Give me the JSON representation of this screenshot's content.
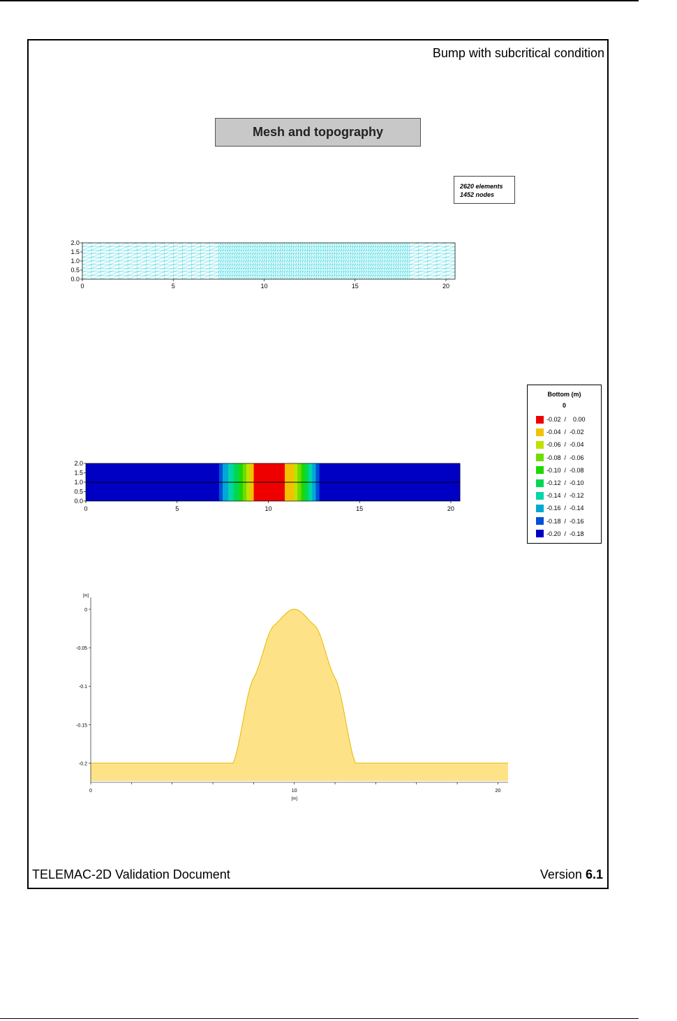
{
  "page": {
    "title": "Bump with subcritical condition",
    "section": "Mesh and topography",
    "mesh_info": [
      "2620 elements",
      "1452 nodes"
    ],
    "footer_left": "TELEMAC-2D Validation Document",
    "footer_version_label": "Version",
    "footer_version_num": "6.1"
  },
  "legend": {
    "title": "Bottom (m)",
    "subtitle": "0",
    "items": [
      {
        "label": "-0.02  /    0.00",
        "color": "#ee0000"
      },
      {
        "label": "-0.04  /  -0.02",
        "color": "#f2c200"
      },
      {
        "label": "-0.06  /  -0.04",
        "color": "#bfe200"
      },
      {
        "label": "-0.08  /  -0.06",
        "color": "#70dc00"
      },
      {
        "label": "-0.10  /  -0.08",
        "color": "#1ed800"
      },
      {
        "label": "-0.12  /  -0.10",
        "color": "#00d850"
      },
      {
        "label": "-0.14  /  -0.12",
        "color": "#00d6a8"
      },
      {
        "label": "-0.16  /  -0.14",
        "color": "#00a8d6"
      },
      {
        "label": "-0.18  /  -0.16",
        "color": "#0050d8"
      },
      {
        "label": "-0.20  /  -0.18",
        "color": "#0000c4"
      }
    ]
  },
  "chart_data": [
    {
      "type": "mesh",
      "xlim": [
        0,
        20.5
      ],
      "ylim": [
        0,
        2
      ],
      "xticks": [
        0,
        5,
        10,
        15,
        20
      ],
      "yticks": [
        "0.0",
        "0.5",
        "1.0",
        "1.5",
        "2.0"
      ],
      "refined_zone": [
        7.5,
        18
      ],
      "mesh_color": "#33d6e0"
    },
    {
      "type": "heatmap",
      "xlim": [
        0,
        20.5
      ],
      "ylim": [
        0,
        2
      ],
      "xticks": [
        0,
        5,
        10,
        15,
        20
      ],
      "yticks": [
        "0.0",
        "0.5",
        "1.0",
        "1.5",
        "2.0"
      ],
      "section_line_y": 1.0,
      "bands": [
        {
          "x0": 0,
          "x1": 7.3,
          "color": "#0000c4"
        },
        {
          "x0": 7.3,
          "x1": 7.5,
          "color": "#0050d8"
        },
        {
          "x0": 7.5,
          "x1": 7.8,
          "color": "#00a8d6"
        },
        {
          "x0": 7.8,
          "x1": 8.1,
          "color": "#00d6a8"
        },
        {
          "x0": 8.1,
          "x1": 8.4,
          "color": "#00d850"
        },
        {
          "x0": 8.4,
          "x1": 8.6,
          "color": "#1ed800"
        },
        {
          "x0": 8.6,
          "x1": 8.8,
          "color": "#70dc00"
        },
        {
          "x0": 8.8,
          "x1": 9.0,
          "color": "#bfe200"
        },
        {
          "x0": 9.0,
          "x1": 9.2,
          "color": "#f2c200"
        },
        {
          "x0": 9.2,
          "x1": 10.9,
          "color": "#ee0000"
        },
        {
          "x0": 10.9,
          "x1": 11.4,
          "color": "#f2c200"
        },
        {
          "x0": 11.4,
          "x1": 11.6,
          "color": "#bfe200"
        },
        {
          "x0": 11.6,
          "x1": 11.8,
          "color": "#70dc00"
        },
        {
          "x0": 11.8,
          "x1": 12.0,
          "color": "#1ed800"
        },
        {
          "x0": 12.0,
          "x1": 12.2,
          "color": "#00d850"
        },
        {
          "x0": 12.2,
          "x1": 12.4,
          "color": "#00d6a8"
        },
        {
          "x0": 12.4,
          "x1": 12.6,
          "color": "#00a8d6"
        },
        {
          "x0": 12.6,
          "x1": 12.8,
          "color": "#0050d8"
        },
        {
          "x0": 12.8,
          "x1": 20.5,
          "color": "#0000c4"
        }
      ]
    },
    {
      "type": "area",
      "xlim": [
        0,
        20.5
      ],
      "ylim": [
        -0.225,
        0.01
      ],
      "xticks": [
        0,
        10,
        20
      ],
      "yticks": [
        0,
        -0.05,
        -0.1,
        -0.15,
        -0.2
      ],
      "ytick_labels": [
        "0",
        "-0.05",
        "-0.1",
        "-0.15",
        "-0.2"
      ],
      "xlabel": "[m]",
      "ylabel": "[m]",
      "fill_color": "#fde288",
      "line_color": "#e8b800",
      "x": [
        0,
        7,
        8,
        9,
        10,
        11,
        12,
        13,
        20.5
      ],
      "y": [
        -0.2,
        -0.2,
        -0.09,
        -0.02,
        0.0,
        -0.02,
        -0.09,
        -0.2,
        -0.2
      ]
    }
  ]
}
